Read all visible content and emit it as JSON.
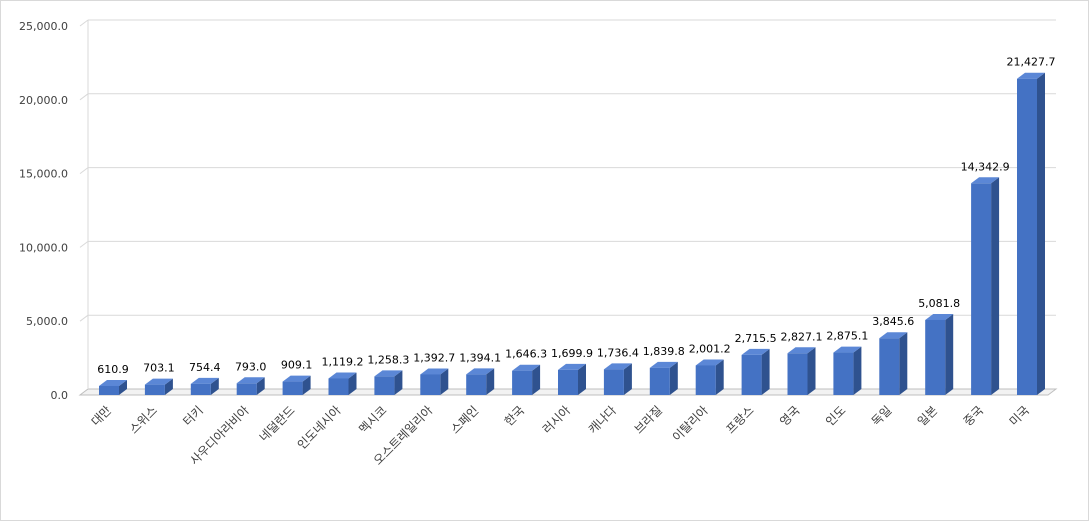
{
  "chart_data": {
    "type": "bar",
    "title": "",
    "xlabel": "",
    "ylabel": "",
    "ylim": [
      0,
      25000
    ],
    "yticks": [
      "0.0",
      "5,000.0",
      "10,000.0",
      "15,000.0",
      "20,000.0",
      "25,000.0"
    ],
    "grid": true,
    "legend": "none",
    "categories": [
      "대만",
      "스위스",
      "터키",
      "사우디아라비아",
      "네덜란드",
      "인도네시아",
      "멕시코",
      "오스트레일리아",
      "스페인",
      "한국",
      "러시아",
      "캐나다",
      "브라질",
      "이탈리아",
      "프랑스",
      "영국",
      "인도",
      "독일",
      "일본",
      "중국",
      "미국"
    ],
    "values": [
      610.9,
      703.1,
      754.4,
      793.0,
      909.1,
      1119.2,
      1258.3,
      1392.7,
      1394.1,
      1646.3,
      1699.9,
      1736.4,
      1839.8,
      2001.2,
      2715.5,
      2827.1,
      2875.1,
      3845.6,
      5081.8,
      14342.9,
      21427.7
    ],
    "value_labels": [
      "610.9",
      "703.1",
      "754.4",
      "793.0",
      "909.1",
      "1,119.2",
      "1,258.3",
      "1,392.7",
      "1,394.1",
      "1,646.3",
      "1,699.9",
      "1,736.4",
      "1,839.8",
      "2,001.2",
      "2,715.5",
      "2,827.1",
      "2,875.1",
      "3,845.6",
      "5,081.8",
      "14,342.9",
      "21,427.7"
    ],
    "colors": {
      "bar_front": "#4472c4",
      "bar_side": "#2f528f",
      "bar_top": "#5b87d6",
      "grid": "#d9d9d9",
      "axis": "#bfbfbf"
    }
  }
}
